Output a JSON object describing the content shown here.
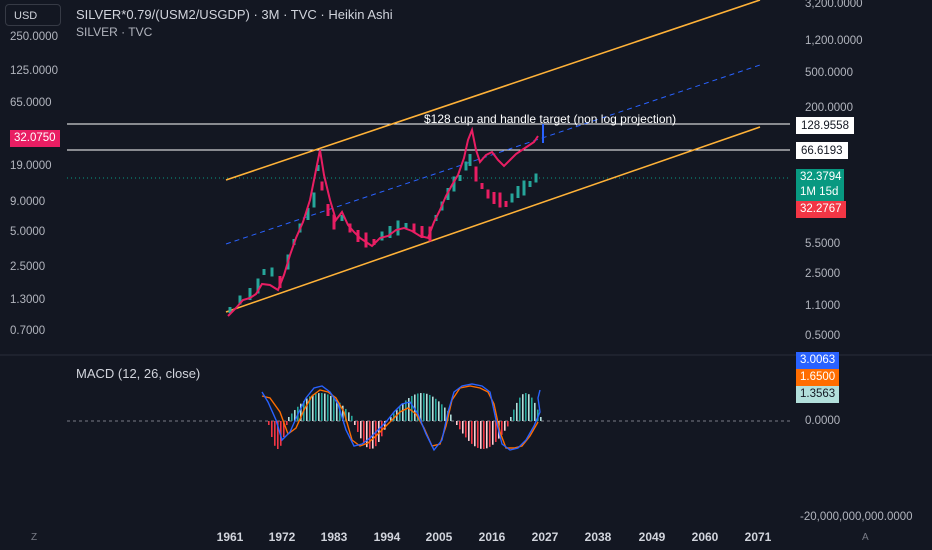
{
  "header": {
    "currency": "USD",
    "title": "SILVER*0.79/(USM2/USGDP) · 3M · TVC · Heikin Ashi",
    "subtitle": "SILVER · TVC"
  },
  "left_scale": {
    "ticks": [
      "250.0000",
      "125.0000",
      "65.0000",
      "19.0000",
      "9.0000",
      "5.0000",
      "2.5000",
      "1.3000",
      "0.7000"
    ],
    "price_badge": "32.0750",
    "price_badge_color": "#e91e63"
  },
  "right_scale": {
    "ticks": [
      "3,200.0000",
      "1,200.0000",
      "500.0000",
      "200.0000",
      "5.5000",
      "2.5000",
      "1.1000",
      "0.5000"
    ],
    "badges": {
      "target_high": "128.9558",
      "target_low": "66.6193",
      "last_price": "32.3794",
      "countdown": "1M 15d",
      "ha_price": "32.2767"
    },
    "colors": {
      "last_price": "#089981",
      "ha_price": "#f23645"
    }
  },
  "annotation": {
    "text": "$128 cup and handle target (non log projection)"
  },
  "x_axis": {
    "ticks": [
      "1961",
      "1972",
      "1983",
      "1994",
      "2005",
      "2016",
      "2027",
      "2038",
      "2049",
      "2060",
      "2071"
    ]
  },
  "macd": {
    "label": "MACD (12, 26, close)",
    "badges": {
      "macd": "3.0063",
      "signal": "1.6500",
      "histogram": "1.3563"
    },
    "badge_colors": {
      "macd": "#2962ff",
      "signal": "#ff6d00",
      "histogram": "#b2dfdb"
    },
    "ticks": [
      "0.0000",
      "-20,000,000,000.0000"
    ]
  },
  "footer": {
    "left_icon": "Z",
    "right_icon": "A"
  },
  "colors": {
    "background": "#131722",
    "channel": "#ffb238",
    "midline": "#2962ff",
    "candle_up": "#26a69a",
    "candle_down": "#e91e63",
    "ratio_line": "#e91e63"
  }
}
